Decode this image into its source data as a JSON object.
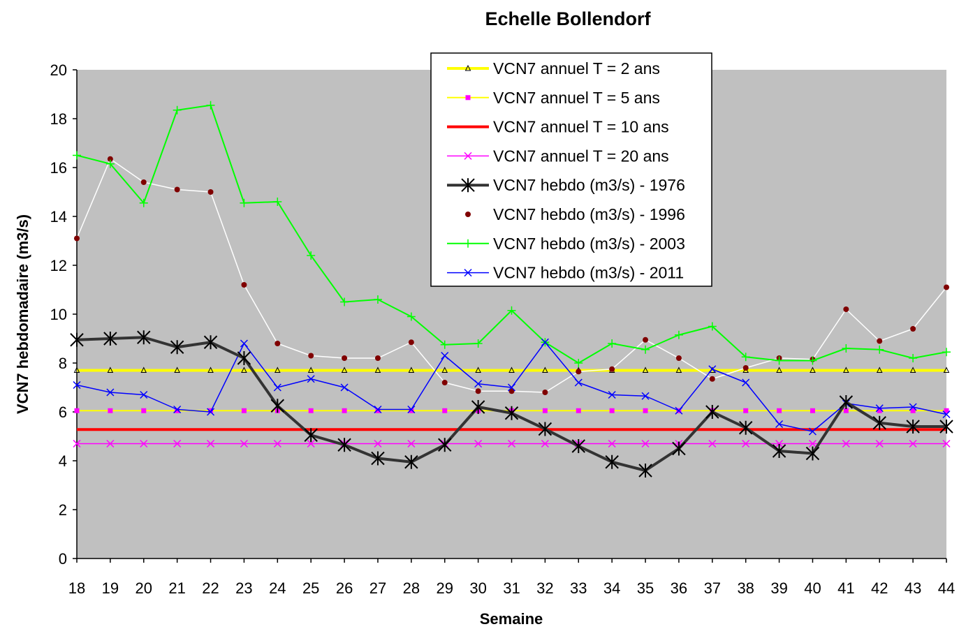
{
  "chart_data": {
    "type": "line",
    "title": "Echelle Bollendorf",
    "xlabel": "Semaine",
    "ylabel": "VCN7 hebdomadaire (m3/s)",
    "x": [
      18,
      19,
      20,
      21,
      22,
      23,
      24,
      25,
      26,
      27,
      28,
      29,
      30,
      31,
      32,
      33,
      34,
      35,
      36,
      37,
      38,
      39,
      40,
      41,
      42,
      43,
      44
    ],
    "ylim": [
      0,
      20
    ],
    "yticks": [
      0,
      2,
      4,
      6,
      8,
      10,
      12,
      14,
      16,
      18,
      20
    ],
    "grid": false,
    "plot_background": "#c0c0c0",
    "legend_position": "top-center",
    "series": [
      {
        "name": "VCN7 annuel T = 2 ans",
        "color": "#ffff00",
        "marker": "triangle",
        "marker_color": "#000000",
        "line_width": 4,
        "values": [
          7.7,
          7.7,
          7.7,
          7.7,
          7.7,
          7.7,
          7.7,
          7.7,
          7.7,
          7.7,
          7.7,
          7.7,
          7.7,
          7.7,
          7.7,
          7.7,
          7.7,
          7.7,
          7.7,
          7.7,
          7.7,
          7.7,
          7.7,
          7.7,
          7.7,
          7.7,
          7.7
        ]
      },
      {
        "name": "VCN7 annuel T = 5 ans",
        "color": "#ffff00",
        "marker": "square",
        "marker_color": "#ff00ff",
        "line_width": 2,
        "values": [
          6.05,
          6.05,
          6.05,
          6.05,
          6.05,
          6.05,
          6.05,
          6.05,
          6.05,
          6.05,
          6.05,
          6.05,
          6.05,
          6.05,
          6.05,
          6.05,
          6.05,
          6.05,
          6.05,
          6.05,
          6.05,
          6.05,
          6.05,
          6.05,
          6.05,
          6.05,
          6.05
        ]
      },
      {
        "name": "VCN7 annuel T = 10 ans",
        "color": "#ff0000",
        "marker": "none",
        "marker_color": "#ff0000",
        "line_width": 4,
        "values": [
          5.28,
          5.28,
          5.28,
          5.28,
          5.28,
          5.28,
          5.28,
          5.28,
          5.28,
          5.28,
          5.28,
          5.28,
          5.28,
          5.28,
          5.28,
          5.28,
          5.28,
          5.28,
          5.28,
          5.28,
          5.28,
          5.28,
          5.28,
          5.28,
          5.28,
          5.28,
          5.28
        ]
      },
      {
        "name": "VCN7 annuel T = 20 ans",
        "color": "#ff00ff",
        "marker": "x",
        "marker_color": "#ff00ff",
        "line_width": 1.5,
        "values": [
          4.7,
          4.7,
          4.7,
          4.7,
          4.7,
          4.7,
          4.7,
          4.7,
          4.7,
          4.7,
          4.7,
          4.7,
          4.7,
          4.7,
          4.7,
          4.7,
          4.7,
          4.7,
          4.7,
          4.7,
          4.7,
          4.7,
          4.7,
          4.7,
          4.7,
          4.7,
          4.7
        ]
      },
      {
        "name": "VCN7 hebdo (m3/s) - 1976",
        "color": "#333333",
        "marker": "star",
        "marker_color": "#000000",
        "line_width": 4,
        "values": [
          8.95,
          9.0,
          9.05,
          8.65,
          8.85,
          8.2,
          6.25,
          5.05,
          4.65,
          4.1,
          3.95,
          4.65,
          6.2,
          5.95,
          5.3,
          4.6,
          3.95,
          3.6,
          4.5,
          6.0,
          5.35,
          4.4,
          4.3,
          6.4,
          5.55,
          5.4,
          5.4
        ]
      },
      {
        "name": "VCN7 hebdo (m3/s) - 1996",
        "color": "#ffffff",
        "marker": "circle",
        "marker_color": "#800000",
        "line_width": 1.5,
        "values": [
          13.1,
          16.35,
          15.4,
          15.1,
          15.0,
          11.2,
          8.8,
          8.3,
          8.2,
          8.2,
          8.85,
          7.2,
          6.85,
          6.85,
          6.8,
          7.65,
          7.75,
          8.95,
          8.2,
          7.35,
          7.8,
          8.2,
          8.15,
          10.2,
          8.9,
          9.4,
          11.1
        ]
      },
      {
        "name": "VCN7 hebdo (m3/s) - 2003",
        "color": "#00ff00",
        "marker": "plus",
        "marker_color": "#00ff00",
        "line_width": 2,
        "values": [
          16.5,
          16.15,
          14.55,
          18.35,
          18.55,
          14.55,
          14.6,
          12.4,
          10.5,
          10.6,
          9.9,
          8.75,
          8.8,
          10.15,
          8.85,
          8.0,
          8.8,
          8.55,
          9.15,
          9.5,
          8.25,
          8.1,
          8.1,
          8.6,
          8.55,
          8.2,
          8.45
        ]
      },
      {
        "name": "VCN7 hebdo (m3/s) - 2011",
        "color": "#0000ff",
        "marker": "x",
        "marker_color": "#0000ff",
        "line_width": 1.5,
        "values": [
          7.1,
          6.8,
          6.7,
          6.1,
          6.0,
          8.8,
          7.0,
          7.35,
          7.0,
          6.1,
          6.1,
          8.3,
          7.15,
          7.0,
          8.85,
          7.2,
          6.7,
          6.65,
          6.05,
          7.75,
          7.2,
          5.5,
          5.2,
          6.35,
          6.15,
          6.2,
          5.9
        ]
      }
    ]
  }
}
